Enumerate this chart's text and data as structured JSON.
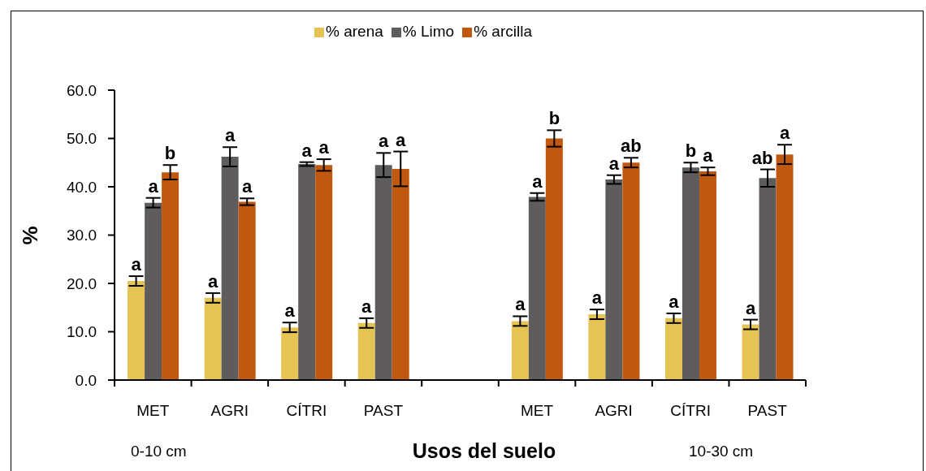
{
  "chart_data": {
    "type": "bar",
    "categories": [
      "MET",
      "AGRI",
      "CÍTRI",
      "PAST",
      null,
      "MET",
      "AGRI",
      "CÍTRI",
      "PAST"
    ],
    "series": [
      {
        "name": "% arena",
        "color": "#e6c454",
        "values": [
          20.5,
          17.0,
          10.9,
          11.8,
          null,
          12.2,
          13.6,
          12.8,
          11.5
        ],
        "errors": [
          1.0,
          1.0,
          1.0,
          1.0,
          null,
          1.0,
          1.0,
          1.0,
          1.0
        ],
        "value_labels": [
          "a",
          "a",
          "a",
          "a",
          null,
          "a",
          "a",
          "a",
          "a"
        ]
      },
      {
        "name": "% Limo",
        "color": "#5e5c5c",
        "values": [
          36.7,
          46.2,
          44.7,
          44.5,
          null,
          37.9,
          41.5,
          44.0,
          41.8
        ],
        "errors": [
          1.0,
          2.0,
          0.4,
          2.5,
          null,
          0.8,
          0.9,
          1.0,
          1.8
        ],
        "value_labels": [
          "a",
          "a",
          "a",
          "a",
          null,
          "a",
          "a",
          "b",
          "ab"
        ]
      },
      {
        "name": "% arcilla",
        "color": "#c0580f",
        "values": [
          43.0,
          36.9,
          44.5,
          43.7,
          null,
          50.0,
          45.0,
          43.2,
          46.7
        ],
        "errors": [
          1.5,
          0.7,
          1.2,
          3.6,
          null,
          1.7,
          1.0,
          0.8,
          2.0
        ],
        "value_labels": [
          "b",
          "a",
          "a",
          "a",
          null,
          "b",
          "ab",
          "a",
          "a"
        ]
      }
    ],
    "ylim": [
      0,
      60
    ],
    "yticks": [
      {
        "value": 0,
        "label": "0.0"
      },
      {
        "value": 10,
        "label": "10.0"
      },
      {
        "value": 20,
        "label": "20.0"
      },
      {
        "value": 30,
        "label": "30.0"
      },
      {
        "value": 40,
        "label": "40.0"
      },
      {
        "value": 50,
        "label": "50.0"
      },
      {
        "value": 60,
        "label": "60.0"
      }
    ],
    "ylabel": "%",
    "xlabel": "Usos del suelo",
    "annotations": [
      "0-10 cm",
      "10-30 cm"
    ],
    "legend": "top"
  }
}
